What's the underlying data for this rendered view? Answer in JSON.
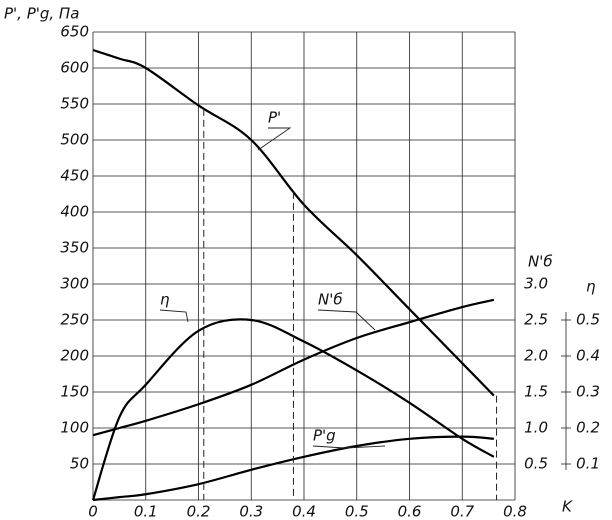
{
  "chart_data": {
    "type": "line",
    "y_label": "P', P'g,  Па",
    "x_label": "K",
    "y2_label": "N'б",
    "y3_label": "η",
    "x": [
      0,
      0.05,
      0.1,
      0.2,
      0.3,
      0.4,
      0.5,
      0.6,
      0.7,
      0.76
    ],
    "xlim": [
      0,
      0.8
    ],
    "xticks": [
      0,
      0.1,
      0.2,
      0.3,
      0.4,
      0.5,
      0.6,
      0.7,
      0.8
    ],
    "ylim": [
      0,
      650
    ],
    "yticks": [
      50,
      100,
      150,
      200,
      250,
      300,
      350,
      400,
      450,
      500,
      550,
      600,
      650
    ],
    "y2lim": [
      0,
      6.5
    ],
    "y2ticks": [
      0.5,
      {
        "value": 1,
        "label": "1.0"
      },
      1.5,
      {
        "value": 2,
        "label": "2.0"
      },
      2.5,
      {
        "value": 3,
        "label": "3.0"
      }
    ],
    "y3lim": [
      0,
      1.3
    ],
    "y3ticks": [
      0.1,
      0.2,
      0.3,
      0.4,
      0.5
    ],
    "grid": true,
    "series": [
      {
        "name": "P'",
        "color": "#000000",
        "values": [
          625,
          613,
          600,
          548,
          500,
          410,
          340,
          265,
          190,
          145
        ]
      },
      {
        "name": "η",
        "color": "#000000",
        "axis": "y3",
        "values": [
          0,
          0.23,
          0.32,
          0.47,
          0.5,
          0.44,
          0.36,
          0.27,
          0.17,
          0.12
        ]
      },
      {
        "name": "N'б",
        "color": "#000000",
        "axis": "y2",
        "values": [
          0.9,
          1.0,
          1.1,
          1.33,
          1.6,
          1.95,
          2.25,
          2.47,
          2.68,
          2.78
        ]
      },
      {
        "name": "P'g",
        "color": "#000000",
        "values": [
          0,
          4,
          8,
          22,
          42,
          60,
          75,
          85,
          88,
          85
        ]
      }
    ],
    "reference_lines": [
      0.21,
      0.38,
      0.765
    ]
  }
}
